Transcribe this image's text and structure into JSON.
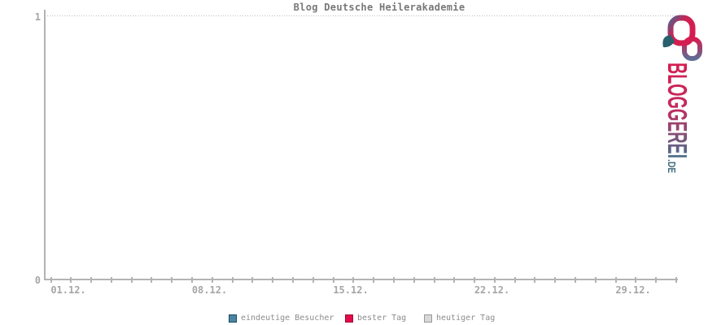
{
  "chart_data": {
    "type": "line",
    "title": "Blog Deutsche Heilerakademie",
    "xlabel": "",
    "ylabel": "",
    "x_tick_labels": [
      "01.12.",
      "08.12.",
      "15.12.",
      "22.12.",
      "29.12."
    ],
    "y_tick_labels": [
      "0",
      "1"
    ],
    "ylim": [
      0,
      1
    ],
    "grid": "single dotted horizontal gridline at y=1",
    "legend_position": "bottom",
    "series": [
      {
        "name": "eindeutige Besucher",
        "color": "#4a86a4",
        "border": "#1b4a5f",
        "values": []
      },
      {
        "name": "bester Tag",
        "color": "#e40a47",
        "border": "#a30b35",
        "values": []
      },
      {
        "name": "heutiger Tag",
        "color": "#d8d8d8",
        "border": "#999999",
        "values": []
      }
    ]
  },
  "logo": {
    "name": "BLOGGEREI",
    "tld": ".DE",
    "accent_red": "#d41e51",
    "accent_slate": "#47708d",
    "accent_teal": "#2b5f6d"
  }
}
